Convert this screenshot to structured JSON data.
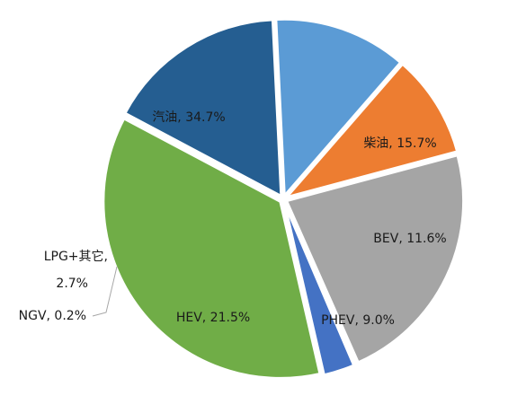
{
  "chart_data": {
    "type": "pie",
    "categories": [
      "柴油",
      "BEV",
      "PHEV",
      "HEV",
      "NGV",
      "LPG+其它",
      "汽油"
    ],
    "values": [
      15.7,
      11.6,
      9.0,
      21.5,
      0.2,
      2.7,
      34.7
    ],
    "unit": "%",
    "labels": [
      "柴油, 15.7%",
      "BEV, 11.6%",
      "PHEV, 9.0%",
      "HEV, 21.5%",
      "NGV, 0.2%",
      "LPG+其它,",
      "汽油, 34.7%"
    ],
    "label_extra": {
      "LPG+其它": "2.7%"
    },
    "colors": [
      "#255e91",
      "#5b9bd5",
      "#ed7d31",
      "#a5a5a5",
      "#9e9e9e",
      "#4472c4",
      "#70ad47"
    ],
    "legend": "none",
    "title": ""
  }
}
